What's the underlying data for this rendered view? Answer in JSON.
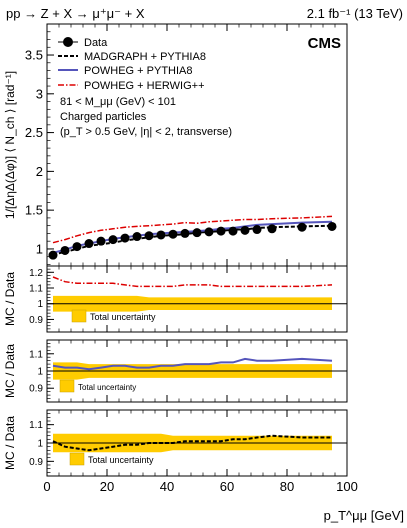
{
  "header": {
    "process": "pp → Z + X → μ⁺μ⁻ + X",
    "lumi": "2.1 fb⁻¹ (13 TeV)",
    "experiment": "CMS"
  },
  "main": {
    "ylabel": "1/[ΔηΔ(Δφ)] ⟨ N_ch ⟩ [rad⁻¹]",
    "legend": [
      {
        "label": "Data",
        "style": "marker"
      },
      {
        "label": "MADGRAPH + PYTHIA8",
        "style": "dashed"
      },
      {
        "label": "POWHEG + PYTHIA8",
        "style": "solid-blue"
      },
      {
        "label": "POWHEG + HERWIG++",
        "style": "dashdot-red"
      }
    ],
    "notes": [
      "81 < M_μμ (GeV) < 101",
      "Charged particles",
      "(p_T > 0.5 GeV, |η| < 2, transverse)"
    ]
  },
  "ratio_panels": [
    {
      "ylabel": "MC / Data",
      "band_label": "Total uncertainty"
    },
    {
      "ylabel": "MC / Data",
      "band_label": "Total uncertainty"
    },
    {
      "ylabel": "MC / Data",
      "band_label": "Total uncertainty"
    }
  ],
  "xaxis": {
    "label": "p_T^μμ [GeV]"
  },
  "colors": {
    "band": "#ffcc00",
    "powheg_pythia": "#5555bb",
    "powheg_herwig": "#dd0000",
    "data": "#000000"
  },
  "chart_data": {
    "type": "line",
    "x": [
      2,
      6,
      10,
      14,
      18,
      22,
      26,
      30,
      34,
      38,
      42,
      46,
      50,
      54,
      58,
      62,
      66,
      70,
      75,
      85,
      95
    ],
    "xlim": [
      0,
      100
    ],
    "xticks": [
      0,
      20,
      40,
      60,
      80,
      100
    ],
    "main": {
      "ylim": [
        0.78,
        3.9
      ],
      "yticks": [
        1,
        1.5,
        2,
        2.5,
        3,
        3.5
      ],
      "series": [
        {
          "name": "Data",
          "values": [
            0.92,
            0.98,
            1.03,
            1.07,
            1.1,
            1.12,
            1.14,
            1.16,
            1.17,
            1.18,
            1.19,
            1.2,
            1.21,
            1.22,
            1.23,
            1.23,
            1.24,
            1.25,
            1.26,
            1.28,
            1.29
          ]
        },
        {
          "name": "MADGRAPH + PYTHIA8",
          "values": [
            0.93,
            0.96,
            1.0,
            1.04,
            1.06,
            1.08,
            1.11,
            1.13,
            1.15,
            1.17,
            1.18,
            1.19,
            1.21,
            1.22,
            1.23,
            1.25,
            1.25,
            1.27,
            1.28,
            1.29,
            1.3
          ]
        },
        {
          "name": "POWHEG + PYTHIA8",
          "values": [
            0.95,
            0.99,
            1.04,
            1.07,
            1.1,
            1.13,
            1.15,
            1.17,
            1.19,
            1.2,
            1.21,
            1.22,
            1.23,
            1.24,
            1.26,
            1.27,
            1.29,
            1.31,
            1.32,
            1.34,
            1.35
          ]
        },
        {
          "name": "POWHEG + HERWIG++",
          "values": [
            1.08,
            1.12,
            1.17,
            1.21,
            1.24,
            1.26,
            1.28,
            1.29,
            1.3,
            1.31,
            1.32,
            1.34,
            1.33,
            1.35,
            1.36,
            1.37,
            1.38,
            1.38,
            1.39,
            1.4,
            1.42
          ]
        }
      ]
    },
    "ratios": [
      {
        "model": "POWHEG + HERWIG++",
        "ylim": [
          0.82,
          1.24
        ],
        "yticks": [
          0.9,
          1,
          1.1,
          1.2
        ],
        "values": [
          1.17,
          1.14,
          1.13,
          1.13,
          1.13,
          1.13,
          1.12,
          1.11,
          1.11,
          1.11,
          1.11,
          1.12,
          1.12,
          1.12,
          1.11,
          1.11,
          1.11,
          1.11,
          1.11,
          1.11,
          1.12
        ],
        "band_lo": [
          0.95,
          0.95,
          0.95,
          0.95,
          0.95,
          0.95,
          0.95,
          0.95,
          0.96,
          0.96,
          0.96,
          0.96,
          0.96,
          0.96,
          0.96,
          0.96,
          0.96,
          0.96,
          0.96,
          0.96,
          0.96
        ],
        "band_hi": [
          1.05,
          1.05,
          1.05,
          1.05,
          1.05,
          1.05,
          1.05,
          1.05,
          1.04,
          1.04,
          1.04,
          1.04,
          1.04,
          1.04,
          1.04,
          1.04,
          1.04,
          1.04,
          1.04,
          1.04,
          1.04
        ]
      },
      {
        "model": "POWHEG + PYTHIA8",
        "ylim": [
          0.82,
          1.18
        ],
        "yticks": [
          0.9,
          1,
          1.1
        ],
        "values": [
          1.03,
          1.02,
          1.02,
          1.01,
          1.02,
          1.03,
          1.03,
          1.02,
          1.02,
          1.03,
          1.03,
          1.04,
          1.04,
          1.04,
          1.05,
          1.05,
          1.07,
          1.06,
          1.06,
          1.07,
          1.06
        ],
        "band_lo": [
          0.95,
          0.95,
          0.95,
          0.96,
          0.96,
          0.96,
          0.96,
          0.96,
          0.96,
          0.96,
          0.96,
          0.96,
          0.96,
          0.96,
          0.96,
          0.96,
          0.96,
          0.96,
          0.96,
          0.96,
          0.96
        ],
        "band_hi": [
          1.05,
          1.05,
          1.05,
          1.04,
          1.04,
          1.04,
          1.04,
          1.04,
          1.04,
          1.04,
          1.04,
          1.04,
          1.04,
          1.04,
          1.04,
          1.04,
          1.04,
          1.04,
          1.04,
          1.04,
          1.04
        ]
      },
      {
        "model": "MADGRAPH + PYTHIA8",
        "ylim": [
          0.82,
          1.18
        ],
        "yticks": [
          0.9,
          1,
          1.1
        ],
        "values": [
          1.01,
          0.98,
          0.97,
          0.96,
          0.97,
          0.98,
          0.99,
          0.99,
          1.0,
          1.0,
          1.0,
          1.01,
          1.01,
          1.01,
          1.01,
          1.02,
          1.02,
          1.03,
          1.04,
          1.03,
          1.03
        ],
        "band_lo": [
          0.95,
          0.95,
          0.95,
          0.95,
          0.95,
          0.95,
          0.95,
          0.95,
          0.95,
          0.95,
          0.96,
          0.96,
          0.96,
          0.96,
          0.96,
          0.96,
          0.96,
          0.96,
          0.96,
          0.96,
          0.96
        ],
        "band_hi": [
          1.05,
          1.05,
          1.05,
          1.05,
          1.05,
          1.05,
          1.05,
          1.05,
          1.05,
          1.05,
          1.04,
          1.04,
          1.04,
          1.04,
          1.04,
          1.04,
          1.04,
          1.04,
          1.04,
          1.04,
          1.04
        ]
      }
    ]
  }
}
